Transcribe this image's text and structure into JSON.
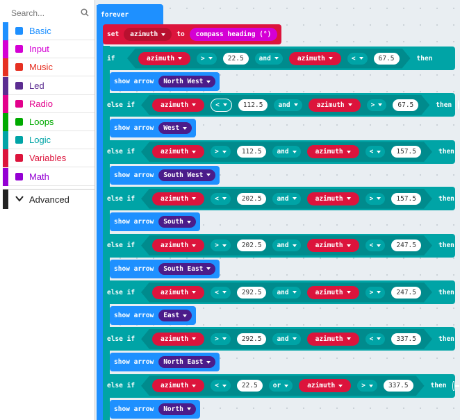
{
  "sidebar": {
    "search_placeholder": "Search...",
    "categories": [
      {
        "name": "Basic",
        "color": "#1e90ff"
      },
      {
        "name": "Input",
        "color": "#d400d4"
      },
      {
        "name": "Music",
        "color": "#e63022"
      },
      {
        "name": "Led",
        "color": "#5c2d91"
      },
      {
        "name": "Radio",
        "color": "#e3008c"
      },
      {
        "name": "Loops",
        "color": "#00aa00"
      },
      {
        "name": "Logic",
        "color": "#00a4a6"
      },
      {
        "name": "Variables",
        "color": "#dc143c"
      },
      {
        "name": "Math",
        "color": "#9400d3"
      }
    ],
    "advanced": "Advanced"
  },
  "workspace": {
    "forever": "forever",
    "set": {
      "keyword": "set",
      "variable": "azimuth",
      "to": "to",
      "value": "compass heading (°)"
    },
    "branches": [
      {
        "keyword": "if",
        "left_var": "azimuth",
        "left_op": ">",
        "left_value": 22.5,
        "conjunction": "and",
        "right_var": "azimuth",
        "right_op": "<",
        "right_value": 67.5,
        "then": "then",
        "action": "show arrow",
        "direction": "North West"
      },
      {
        "keyword": "else if",
        "left_var": "azimuth",
        "left_op": "<",
        "left_value": 112.5,
        "conjunction": "and",
        "right_var": "azimuth",
        "right_op": ">",
        "right_value": 67.5,
        "then": "then",
        "action": "show arrow",
        "direction": "West"
      },
      {
        "keyword": "else if",
        "left_var": "azimuth",
        "left_op": ">",
        "left_value": 112.5,
        "conjunction": "and",
        "right_var": "azimuth",
        "right_op": "<",
        "right_value": 157.5,
        "then": "then",
        "action": "show arrow",
        "direction": "South West"
      },
      {
        "keyword": "else if",
        "left_var": "azimuth",
        "left_op": "<",
        "left_value": 202.5,
        "conjunction": "and",
        "right_var": "azimuth",
        "right_op": ">",
        "right_value": 157.5,
        "then": "then",
        "action": "show arrow",
        "direction": "South"
      },
      {
        "keyword": "else if",
        "left_var": "azimuth",
        "left_op": ">",
        "left_value": 202.5,
        "conjunction": "and",
        "right_var": "azimuth",
        "right_op": "<",
        "right_value": 247.5,
        "then": "then",
        "action": "show arrow",
        "direction": "South East"
      },
      {
        "keyword": "else if",
        "left_var": "azimuth",
        "left_op": "<",
        "left_value": 292.5,
        "conjunction": "and",
        "right_var": "azimuth",
        "right_op": ">",
        "right_value": 247.5,
        "then": "then",
        "action": "show arrow",
        "direction": "East"
      },
      {
        "keyword": "else if",
        "left_var": "azimuth",
        "left_op": ">",
        "left_value": 292.5,
        "conjunction": "and",
        "right_var": "azimuth",
        "right_op": "<",
        "right_value": 337.5,
        "then": "then",
        "action": "show arrow",
        "direction": "North East"
      },
      {
        "keyword": "else if",
        "left_var": "azimuth",
        "left_op": "<",
        "left_value": 22.5,
        "conjunction": "or",
        "right_var": "azimuth",
        "right_op": ">",
        "right_value": 337.5,
        "then": "then",
        "action": "show arrow",
        "direction": "North"
      }
    ]
  }
}
